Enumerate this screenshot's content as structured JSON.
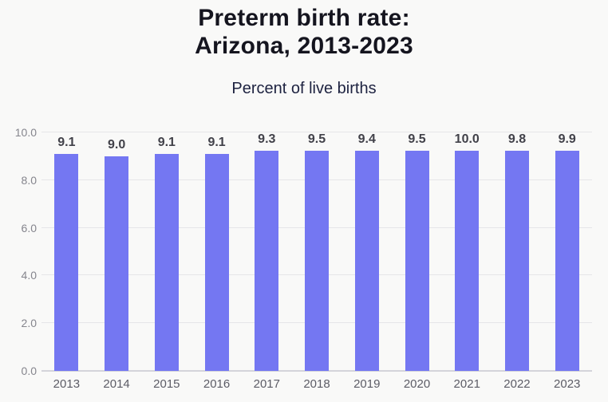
{
  "title": {
    "line1": "Preterm birth rate:",
    "line2": "Arizona, 2013-2023"
  },
  "subtitle": "Percent of live births",
  "chart_data": {
    "type": "bar",
    "title": "Preterm birth rate: Arizona, 2013-2023",
    "subtitle": "Percent of live births",
    "categories": [
      "2013",
      "2014",
      "2015",
      "2016",
      "2017",
      "2018",
      "2019",
      "2020",
      "2021",
      "2022",
      "2023"
    ],
    "values": [
      9.1,
      9.0,
      9.1,
      9.1,
      9.3,
      9.5,
      9.4,
      9.5,
      10.0,
      9.8,
      9.9
    ],
    "value_labels": [
      "9.1",
      "9.0",
      "9.1",
      "9.1",
      "9.3",
      "9.5",
      "9.4",
      "9.5",
      "10.0",
      "9.8",
      "9.9"
    ],
    "xlabel": "",
    "ylabel": "Percent of live births",
    "ylim": [
      0,
      10
    ],
    "yticks": [
      0.0,
      2.0,
      4.0,
      6.0,
      8.0,
      10.0
    ],
    "ytick_labels": [
      "0.0",
      "2.0",
      "4.0",
      "6.0",
      "8.0",
      "10.0"
    ],
    "grid": true,
    "legend": false,
    "bar_color": "#7477f2",
    "colors": {
      "background": "#f9f9f8",
      "title_text": "#15151f",
      "subtitle_text": "#1d2240",
      "value_label_text": "#414149",
      "axis_tick_text": "#85858d",
      "category_label_text": "#5c5c66",
      "gridline": "#e6e6e8",
      "baseline": "#d4d4da"
    }
  }
}
